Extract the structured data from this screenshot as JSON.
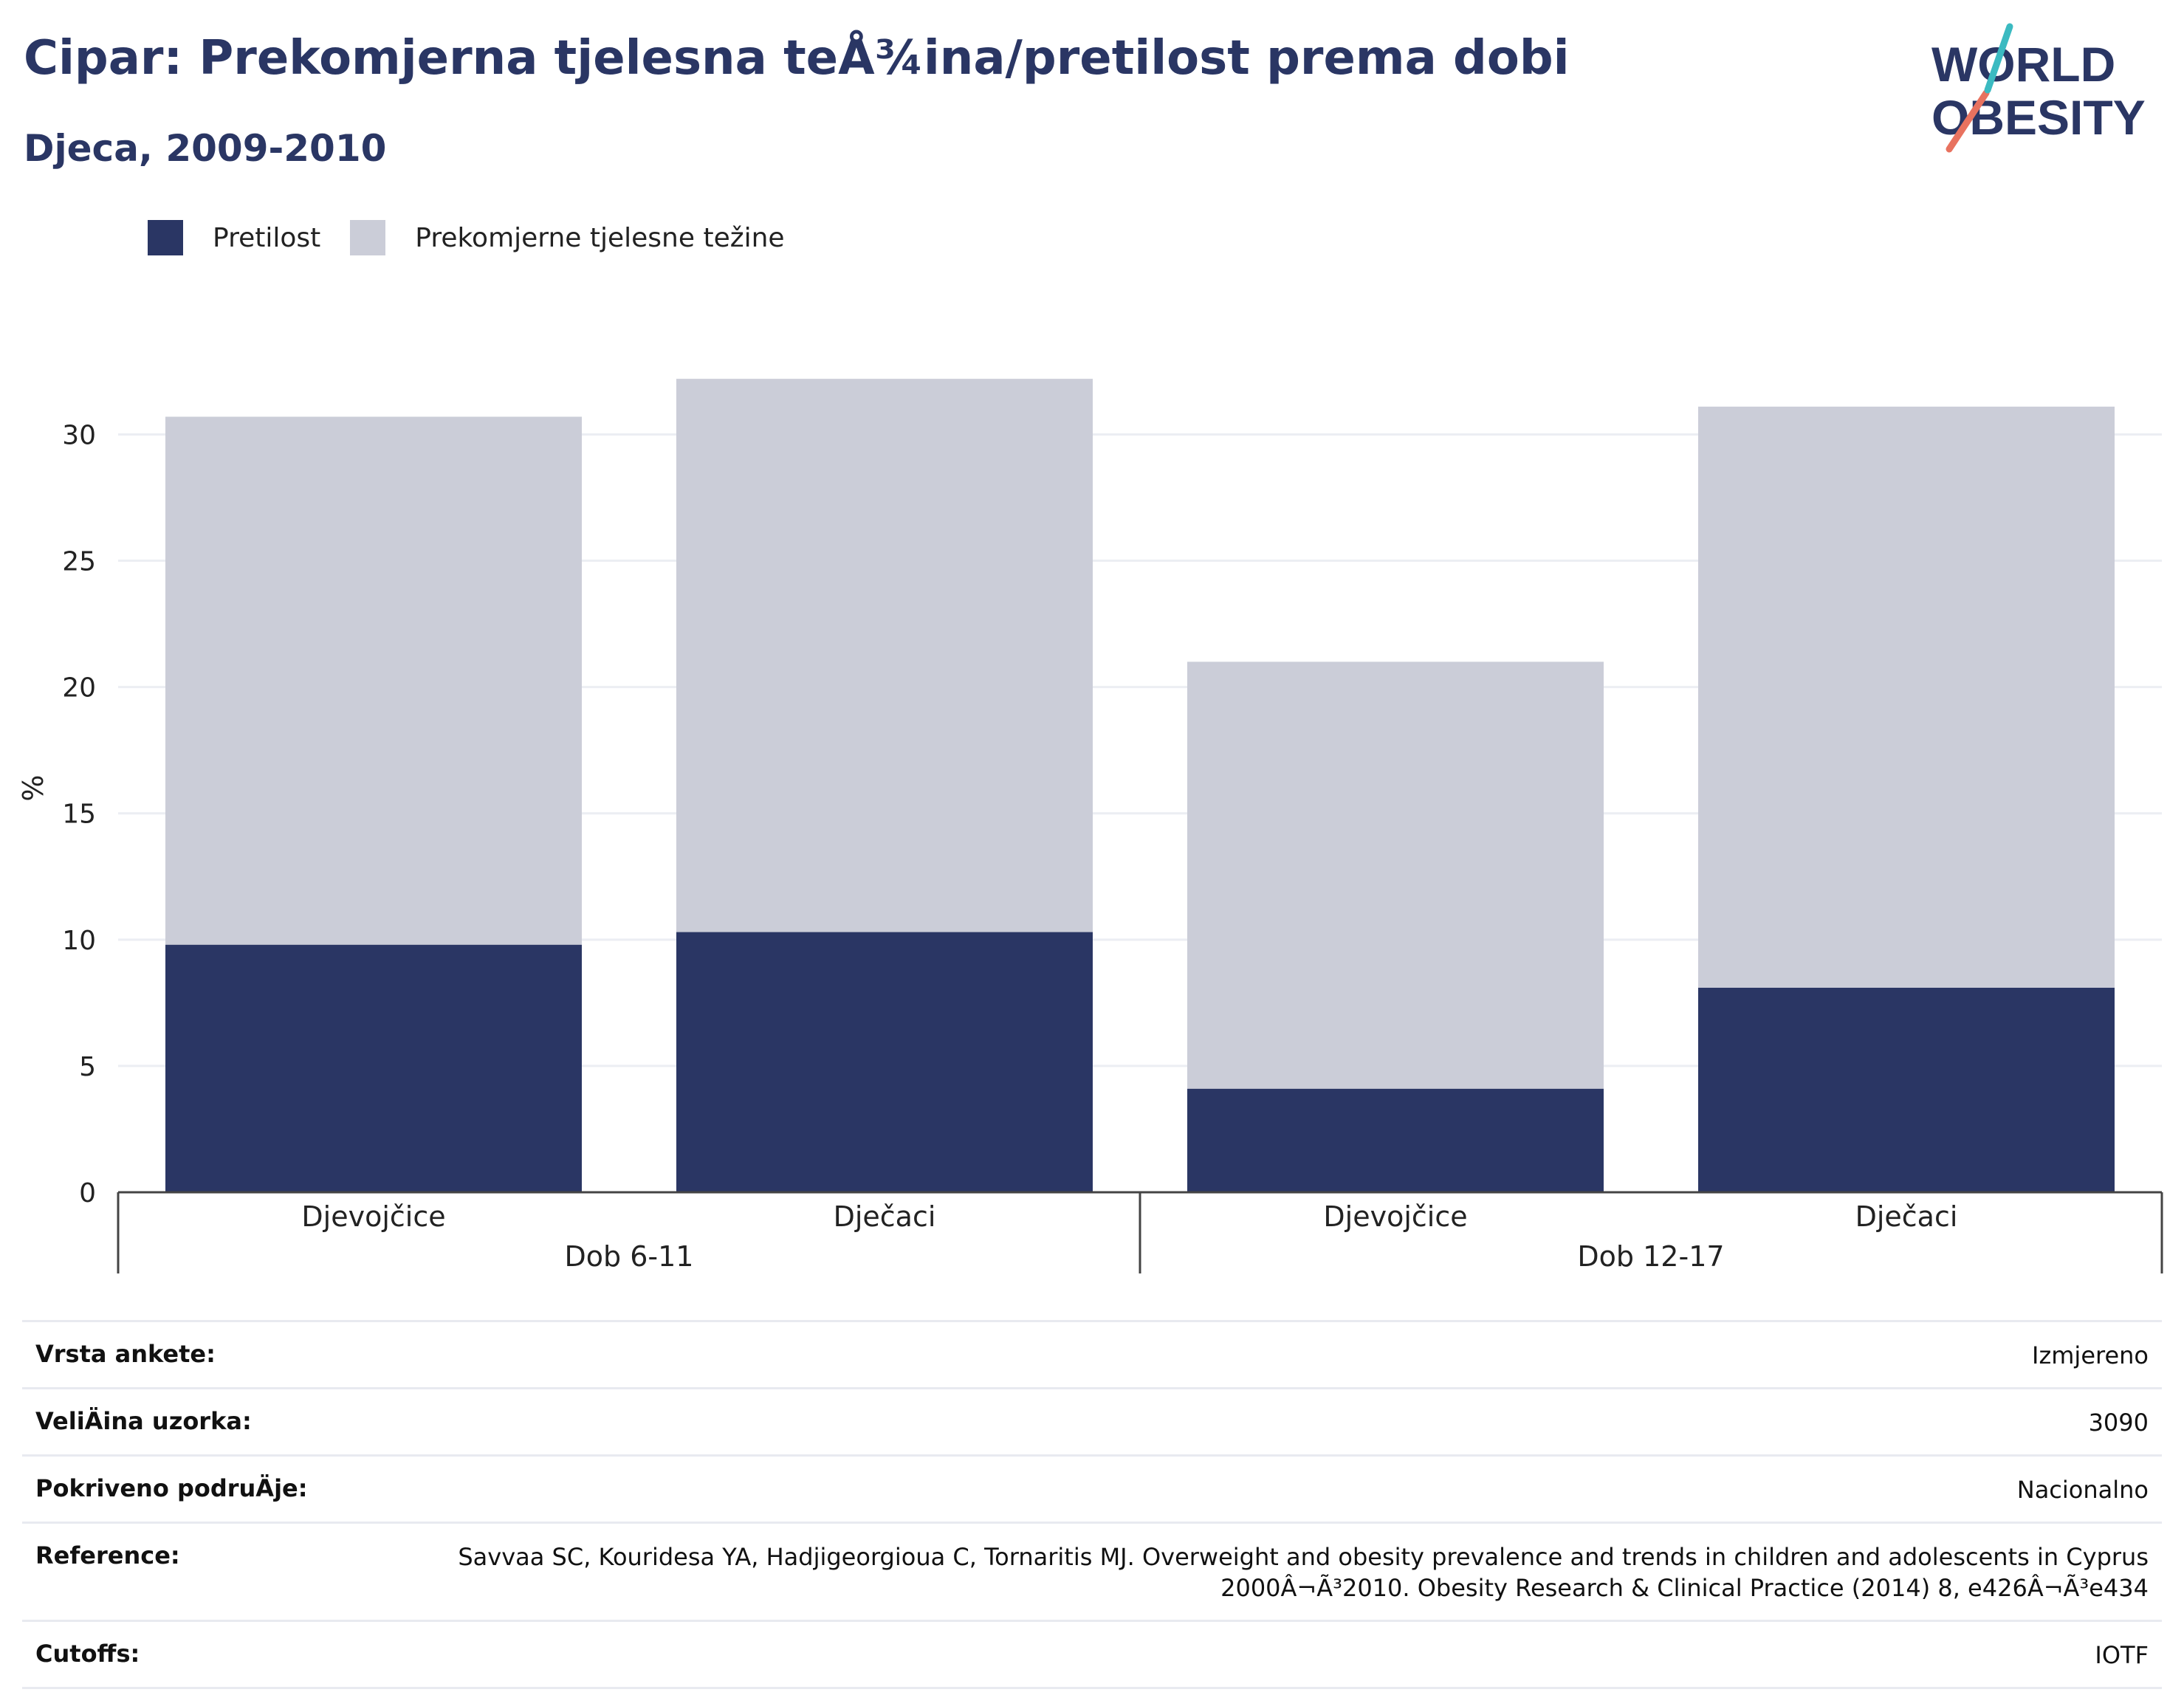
{
  "title": "Cipar: Prekomjerna tjelesna teÅ¾ina/pretilost prema dobi",
  "subtitle": "Djeca, 2009-2010",
  "logo": {
    "line1": "WORLD",
    "line2": "OBESITY"
  },
  "colors": {
    "obesity": "#2a3664",
    "overweight": "#cbcdd8",
    "text": "#2a3664",
    "grid": "#eceef3"
  },
  "legend": [
    {
      "label": "Pretilost",
      "color": "#2a3664"
    },
    {
      "label": "Prekomjerne tjelesne težine",
      "color": "#cbcdd8"
    }
  ],
  "chart_data": {
    "type": "bar",
    "stacked": true,
    "ylabel": "%",
    "ylim": [
      0,
      32
    ],
    "yticks": [
      0,
      5,
      10,
      15,
      20,
      25,
      30
    ],
    "grid": true,
    "legend_position": "top-left",
    "groups": [
      {
        "label": "Dob 6-11",
        "categories": [
          "Djevojčice",
          "Dječaci"
        ]
      },
      {
        "label": "Dob 12-17",
        "categories": [
          "Djevojčice",
          "Dječaci"
        ]
      }
    ],
    "series": [
      {
        "name": "Pretilost",
        "values": [
          9.8,
          10.3,
          4.1,
          8.1
        ]
      },
      {
        "name": "Prekomjerne tjelesne težine",
        "values": [
          20.9,
          21.9,
          16.9,
          23.0
        ]
      }
    ]
  },
  "info": [
    {
      "label": "Vrsta ankete:",
      "value": "Izmjereno"
    },
    {
      "label": "VeliÄ\u001dina uzorka:",
      "value": "3090"
    },
    {
      "label": "Pokriveno podruÄ\u001dje:",
      "value": "Nacionalno"
    },
    {
      "label": "Reference:",
      "value": "Savvaa SC, Kouridesa YA, Hadjigeorgioua C, Tornaritis MJ. Overweight and obesity prevalence and trends in children and adolescents in Cyprus 2000Â¬Ã³2010. Obesity Research & Clinical Practice (2014) 8, e426Â¬Ã³e434"
    },
    {
      "label": "Cutoffs:",
      "value": "IOTF"
    }
  ]
}
